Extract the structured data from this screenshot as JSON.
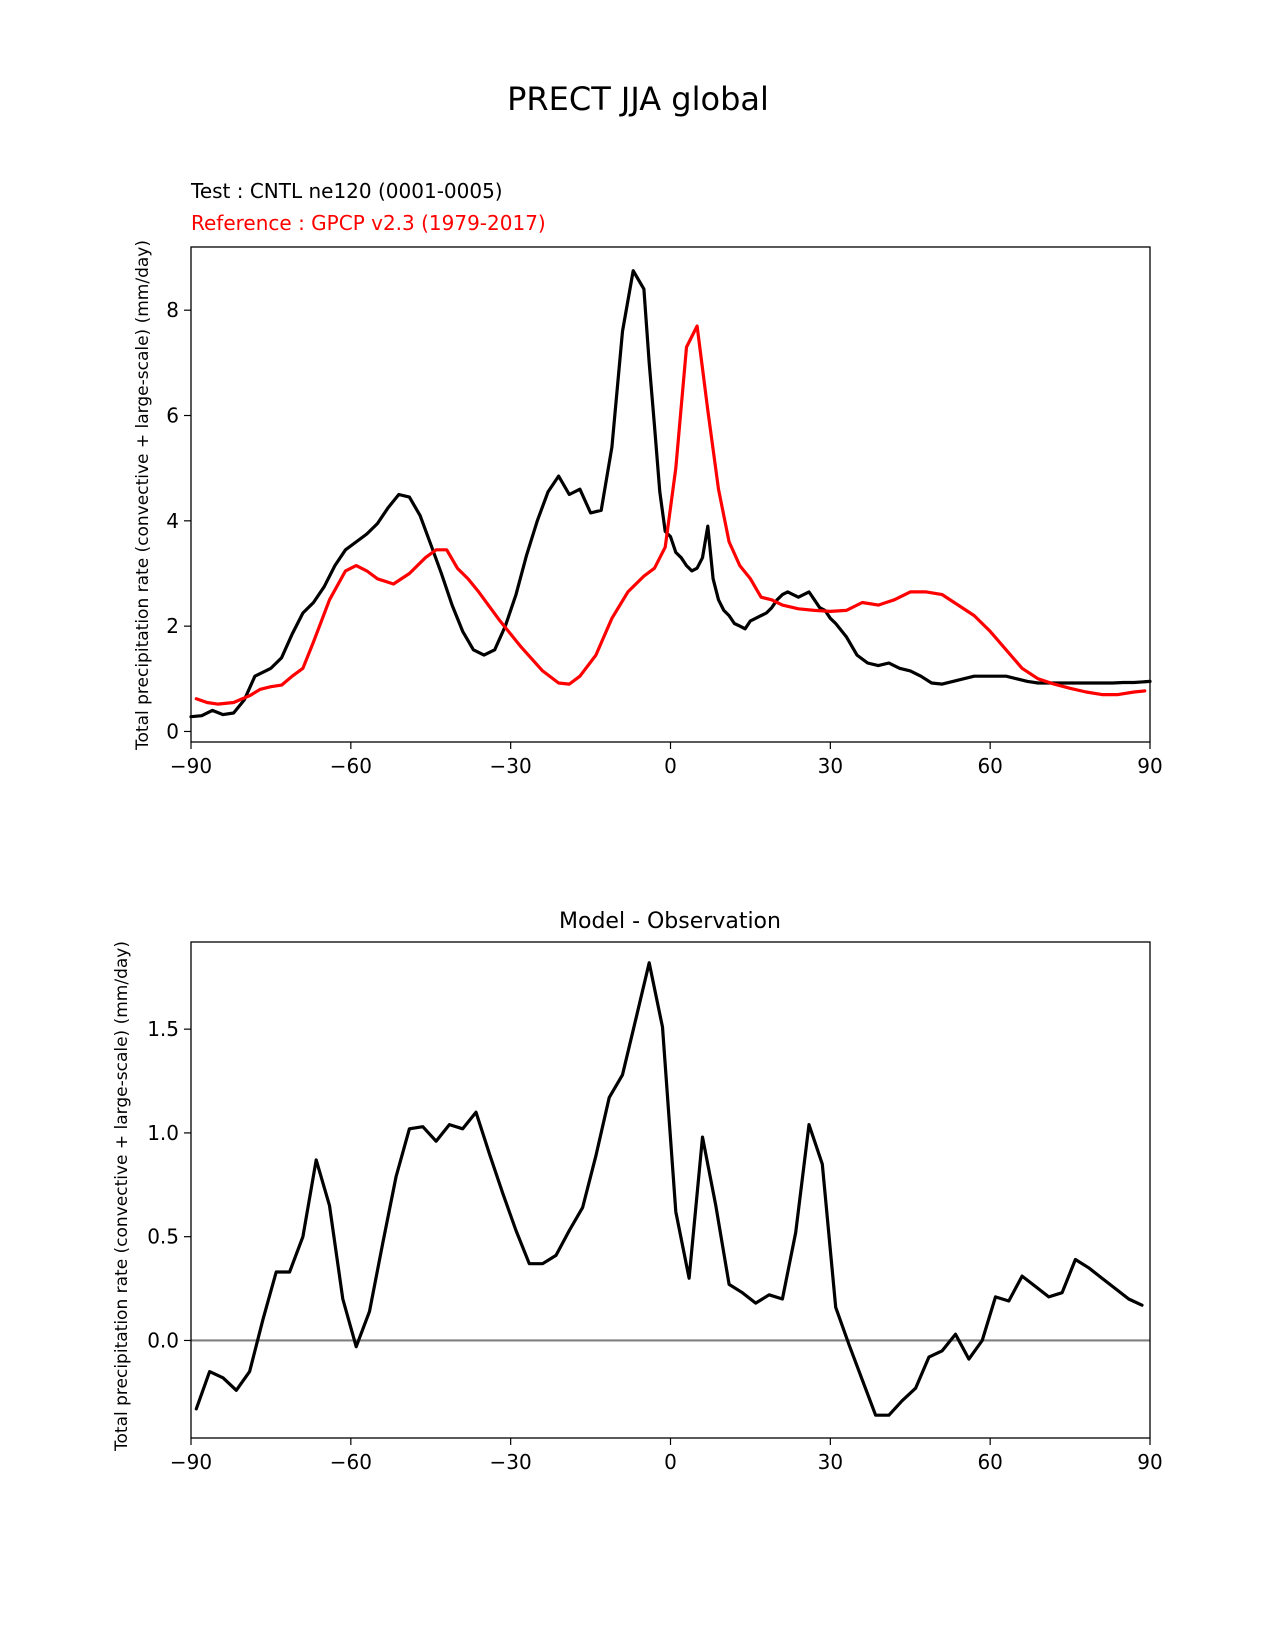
{
  "figure_title": "PRECT JJA global",
  "chart_data": [
    {
      "type": "line",
      "test_label": "Test : CNTL ne120 (0001-0005)",
      "reference_label": "Reference : GPCP v2.3 (1979-2017)",
      "xlabel": "",
      "ylabel": "Total precipitation rate (convective + large-scale) (mm/day)",
      "xlim": [
        -90,
        90
      ],
      "ylim": [
        -0.2,
        9.2
      ],
      "xticks": [
        -90,
        -60,
        -30,
        0,
        30,
        60,
        90
      ],
      "xtick_labels": [
        "−90",
        "−60",
        "−30",
        "0",
        "30",
        "60",
        "90"
      ],
      "yticks": [
        0,
        2,
        4,
        6,
        8
      ],
      "ytick_labels": [
        "0",
        "2",
        "4",
        "6",
        "8"
      ],
      "colors": {
        "test": "#000000",
        "reference": "#ff0000"
      },
      "series": [
        {
          "name": "Test",
          "x": [
            -90,
            -88,
            -86,
            -84,
            -82,
            -80,
            -78,
            -76,
            -75,
            -73,
            -71,
            -69,
            -67,
            -65,
            -63,
            -61,
            -59,
            -57,
            -55,
            -53,
            -51,
            -49,
            -47,
            -45,
            -43,
            -41,
            -39,
            -37,
            -35,
            -33,
            -31,
            -29,
            -27,
            -25,
            -23,
            -21,
            -19,
            -17,
            -15,
            -13,
            -11,
            -9,
            -7,
            -5,
            -4,
            -3,
            -2,
            -1,
            0,
            1,
            2,
            3,
            4,
            5,
            6,
            7,
            8,
            9,
            10,
            11,
            12,
            13,
            14,
            15,
            16,
            17,
            18,
            19,
            20,
            21,
            22,
            23,
            24,
            25,
            26,
            27,
            28,
            29,
            30,
            31,
            33,
            35,
            37,
            39,
            41,
            43,
            45,
            47,
            49,
            51,
            53,
            55,
            57,
            59,
            61,
            63,
            65,
            67,
            69,
            71,
            73,
            75,
            77,
            79,
            81,
            83,
            85,
            87,
            90
          ],
          "values": [
            0.28,
            0.3,
            0.4,
            0.32,
            0.35,
            0.6,
            1.05,
            1.15,
            1.2,
            1.4,
            1.85,
            2.25,
            2.45,
            2.75,
            3.15,
            3.45,
            3.6,
            3.75,
            3.95,
            4.25,
            4.5,
            4.45,
            4.1,
            3.55,
            3.0,
            2.4,
            1.9,
            1.55,
            1.45,
            1.55,
            2.0,
            2.6,
            3.35,
            4.0,
            4.55,
            4.85,
            4.5,
            4.6,
            4.15,
            4.2,
            5.4,
            7.6,
            8.75,
            8.4,
            7.0,
            5.8,
            4.55,
            3.8,
            3.7,
            3.4,
            3.3,
            3.15,
            3.05,
            3.1,
            3.3,
            3.9,
            2.9,
            2.5,
            2.3,
            2.2,
            2.05,
            2.0,
            1.95,
            2.1,
            2.15,
            2.2,
            2.25,
            2.35,
            2.5,
            2.6,
            2.65,
            2.6,
            2.55,
            2.6,
            2.65,
            2.5,
            2.35,
            2.3,
            2.15,
            2.05,
            1.8,
            1.45,
            1.3,
            1.25,
            1.3,
            1.2,
            1.15,
            1.05,
            0.92,
            0.9,
            0.95,
            1.0,
            1.05,
            1.05,
            1.05,
            1.05,
            1.0,
            0.95,
            0.92,
            0.92,
            0.92,
            0.92,
            0.92,
            0.92,
            0.92,
            0.92,
            0.93,
            0.93,
            0.95
          ]
        },
        {
          "name": "Reference",
          "x": [
            -89,
            -87,
            -85,
            -82,
            -79,
            -77,
            -75,
            -73,
            -71,
            -69,
            -67,
            -64,
            -61,
            -59,
            -57,
            -55,
            -52,
            -49,
            -46,
            -44,
            -42,
            -40,
            -38,
            -36,
            -32,
            -28,
            -24,
            -21,
            -19,
            -17,
            -14,
            -11,
            -8,
            -5,
            -3,
            -1,
            1,
            3,
            5,
            7,
            9,
            11,
            13,
            15,
            17,
            19,
            21,
            24,
            27,
            30,
            33,
            36,
            39,
            42,
            45,
            48,
            51,
            54,
            57,
            60,
            63,
            66,
            69,
            72,
            75,
            78,
            81,
            84,
            87,
            89
          ],
          "values": [
            0.62,
            0.55,
            0.52,
            0.55,
            0.68,
            0.8,
            0.85,
            0.88,
            1.05,
            1.2,
            1.7,
            2.5,
            3.05,
            3.15,
            3.05,
            2.9,
            2.8,
            3.0,
            3.3,
            3.45,
            3.45,
            3.1,
            2.9,
            2.65,
            2.1,
            1.6,
            1.15,
            0.92,
            0.9,
            1.05,
            1.45,
            2.15,
            2.65,
            2.95,
            3.1,
            3.5,
            5.0,
            7.3,
            7.7,
            6.1,
            4.6,
            3.6,
            3.15,
            2.9,
            2.55,
            2.5,
            2.4,
            2.33,
            2.3,
            2.28,
            2.3,
            2.45,
            2.4,
            2.5,
            2.65,
            2.65,
            2.6,
            2.4,
            2.2,
            1.9,
            1.55,
            1.2,
            1.0,
            0.9,
            0.82,
            0.75,
            0.7,
            0.7,
            0.75,
            0.77
          ]
        }
      ]
    },
    {
      "type": "line",
      "title": "Model - Observation",
      "xlabel": "",
      "ylabel": "Total precipitation rate (convective + large-scale) (mm/day)",
      "xlim": [
        -90,
        90
      ],
      "ylim": [
        -0.47,
        1.92
      ],
      "xticks": [
        -90,
        -60,
        -30,
        0,
        30,
        60,
        90
      ],
      "xtick_labels": [
        "−90",
        "−60",
        "−30",
        "0",
        "30",
        "60",
        "90"
      ],
      "yticks": [
        0.0,
        0.5,
        1.0,
        1.5
      ],
      "ytick_labels": [
        "0.0",
        "0.5",
        "1.0",
        "1.5"
      ],
      "zero_line_color": "#808080",
      "colors": {
        "difference": "#000000"
      },
      "series": [
        {
          "name": "Model - Observation",
          "x": [
            -89,
            -86.5,
            -84,
            -81.5,
            -79,
            -76.5,
            -74,
            -71.5,
            -69,
            -66.5,
            -64,
            -61.5,
            -59,
            -56.5,
            -54,
            -51.5,
            -49,
            -46.5,
            -44,
            -41.5,
            -39,
            -36.5,
            -34,
            -31.5,
            -29,
            -26.5,
            -24,
            -21.5,
            -19,
            -16.5,
            -14,
            -11.5,
            -9,
            -6.5,
            -4,
            -1.5,
            1,
            3.5,
            6,
            8.5,
            11,
            13.5,
            16,
            18.5,
            21,
            23.5,
            26,
            28.5,
            31,
            33.5,
            36,
            38.5,
            41,
            43.5,
            46,
            48.5,
            51,
            53.5,
            56,
            58.5,
            61,
            63.5,
            66,
            68.5,
            71,
            73.5,
            76,
            78.5,
            81,
            83.5,
            86,
            88.5
          ],
          "values": [
            -0.33,
            -0.15,
            -0.18,
            -0.24,
            -0.15,
            0.1,
            0.33,
            0.33,
            0.5,
            0.87,
            0.65,
            0.2,
            -0.03,
            0.14,
            0.47,
            0.79,
            1.02,
            1.03,
            0.96,
            1.04,
            1.02,
            1.1,
            0.9,
            0.71,
            0.53,
            0.37,
            0.37,
            0.41,
            0.53,
            0.64,
            0.89,
            1.17,
            1.28,
            1.55,
            1.82,
            1.51,
            0.62,
            0.3,
            0.98,
            0.65,
            0.27,
            0.23,
            0.18,
            0.22,
            0.2,
            0.52,
            1.04,
            0.85,
            0.16,
            -0.02,
            -0.19,
            -0.36,
            -0.36,
            -0.29,
            -0.23,
            -0.08,
            -0.05,
            0.03,
            -0.09,
            0.0,
            0.21,
            0.19,
            0.31,
            0.26,
            0.21,
            0.23,
            0.39,
            0.35,
            0.3,
            0.25,
            0.2,
            0.17
          ]
        }
      ]
    }
  ]
}
